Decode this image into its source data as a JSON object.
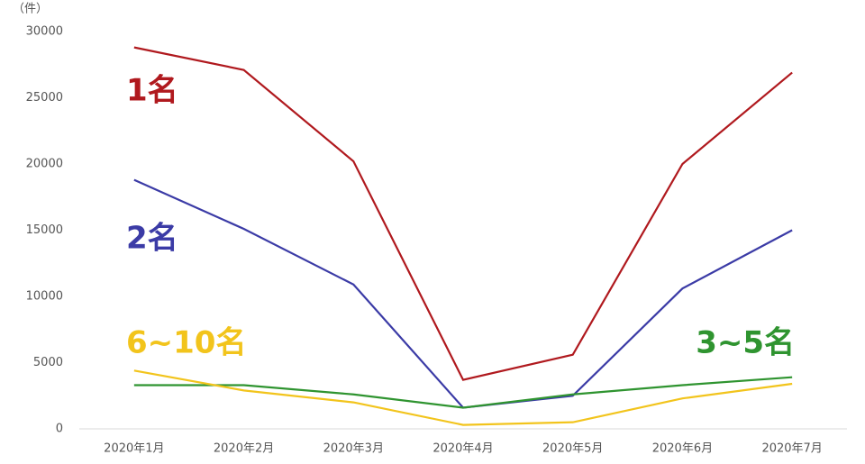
{
  "chart_data": {
    "type": "line",
    "ylabel": "（件）",
    "categories": [
      "2020年1月",
      "2020年2月",
      "2020年3月",
      "2020年4月",
      "2020年5月",
      "2020年6月",
      "2020年7月"
    ],
    "series": [
      {
        "name": "1名",
        "color": "#b0191e",
        "values": [
          28800,
          27100,
          20200,
          3700,
          5600,
          20000,
          26900
        ]
      },
      {
        "name": "2名",
        "color": "#3b3ba6",
        "values": [
          18800,
          15100,
          10900,
          1600,
          2500,
          10600,
          15000
        ]
      },
      {
        "name": "3~5名",
        "color": "#2f9430",
        "values": [
          3300,
          3300,
          2600,
          1600,
          2600,
          3300,
          3900
        ]
      },
      {
        "name": "6~10名",
        "color": "#f2c41c",
        "values": [
          4400,
          2900,
          2000,
          300,
          500,
          2300,
          3400
        ]
      }
    ],
    "ylim": [
      0,
      30000
    ],
    "yticks": [
      0,
      5000,
      10000,
      15000,
      20000,
      25000,
      30000
    ],
    "grid": false
  }
}
